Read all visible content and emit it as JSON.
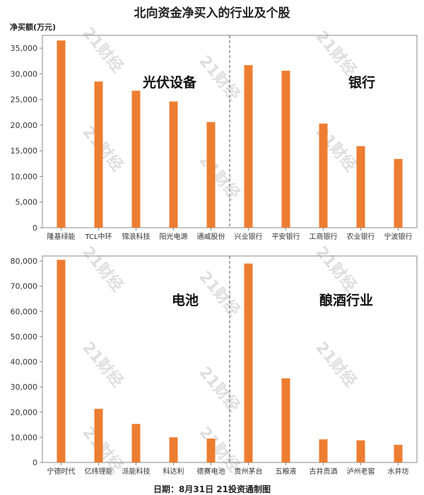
{
  "title": "北向资金净买入的行业及个股",
  "unit_label": "净买额(万元)",
  "footer": "日期：8月31日 21投资通制图",
  "watermark": "21财经",
  "colors": {
    "bar": "#ED7D31",
    "axis": "#888888",
    "divider": "#555555"
  },
  "chart_data": [
    {
      "type": "bar",
      "ylim": [
        0,
        37500
      ],
      "yticks": [
        0,
        5000,
        10000,
        15000,
        20000,
        25000,
        30000,
        35000
      ],
      "tick_labels": [
        "0",
        "5,000",
        "10,000",
        "15,000",
        "20,000",
        "25,000",
        "30,000",
        "35,000"
      ],
      "groups": [
        {
          "label": "光伏设备",
          "categories": [
            "隆基绿能",
            "TCL中环",
            "锦浪科技",
            "阳光电源",
            "通威股份"
          ],
          "values": [
            36500,
            28500,
            26700,
            24600,
            20600
          ]
        },
        {
          "label": "银行",
          "categories": [
            "兴业银行",
            "平安银行",
            "工商银行",
            "农业银行",
            "宁波银行"
          ],
          "values": [
            31700,
            30600,
            20300,
            15900,
            13400
          ]
        }
      ]
    },
    {
      "type": "bar",
      "ylim": [
        0,
        82000
      ],
      "yticks": [
        0,
        10000,
        20000,
        30000,
        40000,
        50000,
        60000,
        70000,
        80000
      ],
      "tick_labels": [
        "0",
        "10,000",
        "20,000",
        "30,000",
        "40,000",
        "50,000",
        "60,000",
        "70,000",
        "80,000"
      ],
      "groups": [
        {
          "label": "电池",
          "categories": [
            "宁德时代",
            "亿纬锂能",
            "派能科技",
            "科达利",
            "德赛电池"
          ],
          "values": [
            80500,
            21300,
            15300,
            10000,
            9500
          ]
        },
        {
          "label": "酿酒行业",
          "categories": [
            "贵州茅台",
            "五粮液",
            "古井贡酒",
            "泸州老窖",
            "水井坊"
          ],
          "values": [
            79000,
            33400,
            9200,
            8800,
            7000
          ]
        }
      ]
    }
  ]
}
